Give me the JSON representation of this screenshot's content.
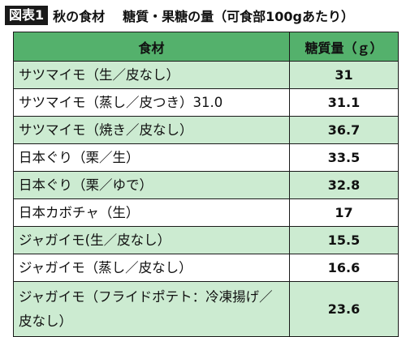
{
  "title": {
    "badge": "図表1",
    "category": "秋の食材",
    "subject": "糖質・果糖の量（可食部100gあたり）"
  },
  "table": {
    "headers": {
      "food": "食材",
      "sugar": "糖質量（ｇ）"
    },
    "rows": [
      {
        "food": "サツマイモ（生／皮なし）",
        "sugar": "31"
      },
      {
        "food": "サツマイモ（蒸し／皮つき）31.0",
        "sugar": "31.1"
      },
      {
        "food": "サツマイモ（焼き／皮なし）",
        "sugar": "36.7"
      },
      {
        "food": "日本ぐり（栗／生）",
        "sugar": "33.5"
      },
      {
        "food": "日本ぐり（栗／ゆで）",
        "sugar": "32.8"
      },
      {
        "food": "日本カボチャ（生）",
        "sugar": "17"
      },
      {
        "food": "ジャガイモ(生／皮なし）",
        "sugar": "15.5"
      },
      {
        "food": "ジャガイモ（蒸し／皮なし）",
        "sugar": "16.6"
      },
      {
        "food": "ジャガイモ（フライドポテト：冷凍揚げ／皮なし）",
        "sugar": "23.6"
      }
    ]
  },
  "colors": {
    "header_green": "#54b16c",
    "row_shade_green": "#ccebd1",
    "badge_black": "#1a1a1a"
  }
}
